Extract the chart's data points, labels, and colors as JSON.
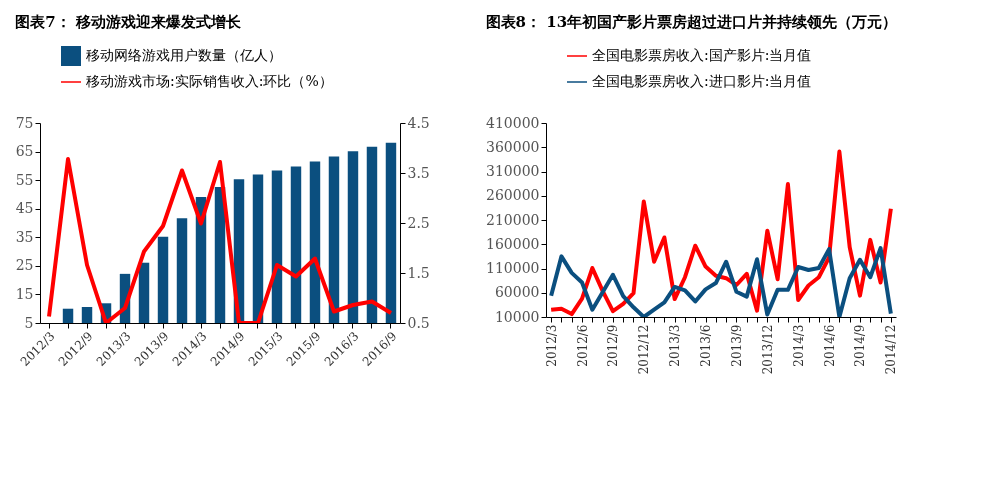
{
  "chart_data": [
    {
      "type": "bar",
      "title": "图表7： 移动游戏迎来爆发式增长",
      "categories": [
        "2012/3",
        null,
        "2012/9",
        null,
        "2013/3",
        null,
        "2013/9",
        null,
        "2014/3",
        null,
        "2014/9",
        null,
        "2015/3",
        null,
        "2015/9",
        null,
        "2016/3",
        null,
        "2016/9"
      ],
      "series": [
        {
          "name": "移动网络游戏用户数量（亿人）",
          "type": "bar",
          "color": "#0b4f7f",
          "values": [
            null,
            10.0,
            10.6,
            11.9,
            22.2,
            26.1,
            35.2,
            41.7,
            49.1,
            52.6,
            55.3,
            57.0,
            58.4,
            59.8,
            61.5,
            63.3,
            65.1,
            66.7,
            68.1
          ]
        },
        {
          "name": "移动游戏市场:实际销售收入:环比（%）",
          "type": "line",
          "axis": "y2",
          "color": "#ff0000",
          "values": [
            0.63,
            3.78,
            1.66,
            0.5,
            0.8,
            1.93,
            2.44,
            3.55,
            2.49,
            3.72,
            0.5,
            0.5,
            1.66,
            1.43,
            1.79,
            0.73,
            0.86,
            0.93,
            0.7
          ]
        }
      ],
      "ylim": [
        5,
        75
      ],
      "yticks": [
        5,
        15,
        25,
        35,
        45,
        55,
        65,
        75
      ],
      "y2lim": [
        0.5,
        4.5
      ],
      "y2ticks": [
        0.5,
        1.5,
        2.5,
        3.5,
        4.5
      ],
      "legend": "top",
      "grid": false
    },
    {
      "type": "line",
      "title": "图表8： 13年初国产影片票房超过进口片并持续领先（万元）",
      "categories": [
        "2012/3",
        null,
        null,
        "2012/6",
        null,
        null,
        "2012/9",
        null,
        null,
        "2012/12",
        null,
        null,
        "2013/3",
        null,
        null,
        "2013/6",
        null,
        null,
        "2013/9",
        null,
        null,
        "2013/12",
        null,
        null,
        "2014/3",
        null,
        null,
        "2014/6",
        null,
        null,
        "2014/9",
        null,
        null,
        "2014/12"
      ],
      "series": [
        {
          "name": "全国电影票房收入:国产影片:当月值",
          "color": "#ff0000",
          "values": [
            25000,
            27000,
            16000,
            48000,
            111000,
            64000,
            22000,
            37000,
            59000,
            248000,
            124000,
            174000,
            47000,
            92000,
            157000,
            114000,
            95000,
            90000,
            76000,
            99000,
            23000,
            188000,
            88000,
            284000,
            45000,
            75000,
            92000,
            133000,
            351000,
            154000,
            54000,
            169000,
            81000,
            233000
          ]
        },
        {
          "name": "全国电影票房收入:进口影片:当月值",
          "color": "#0b4f7f",
          "values": [
            54000,
            135000,
            101000,
            81000,
            25000,
            61000,
            97000,
            53000,
            30000,
            10000,
            25000,
            40000,
            72000,
            65000,
            42000,
            67000,
            80000,
            124000,
            62000,
            52000,
            129000,
            15000,
            66000,
            66000,
            113000,
            107000,
            111000,
            150000,
            10000,
            90000,
            128000,
            92000,
            152000,
            17000
          ]
        }
      ],
      "ylim": [
        10000,
        410000
      ],
      "yticks": [
        10000,
        60000,
        110000,
        160000,
        210000,
        260000,
        310000,
        360000,
        410000
      ],
      "legend": "top",
      "grid": false
    }
  ]
}
